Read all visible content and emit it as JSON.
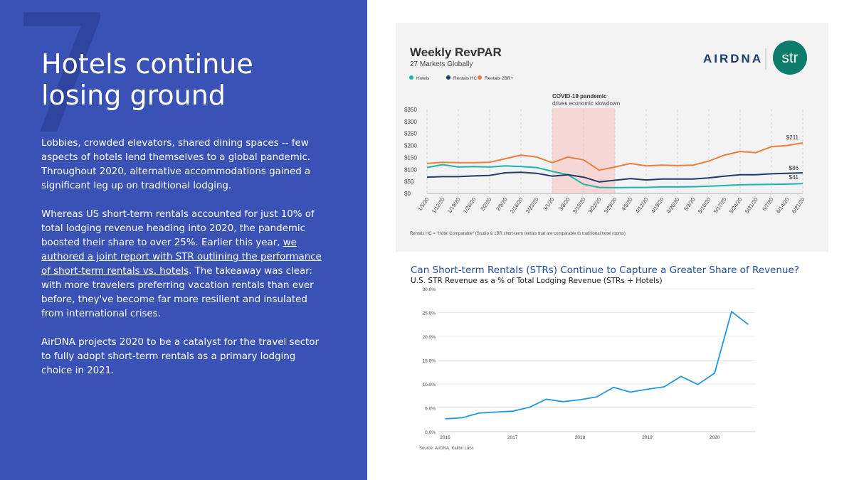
{
  "slide": {
    "number": "7",
    "title_line1": "Hotels continue",
    "title_line2": "losing ground",
    "p1": "Lobbies, crowded elevators, shared dining spaces -- few aspects of hotels lend themselves to a global pandemic. Throughout 2020, alternative accommodations gained a significant leg up on traditional lodging.",
    "p2_before": "Whereas US short-term rentals accounted for just 10% of total lodging revenue heading into 2020, the pandemic boosted their share to over 25%. Earlier this year, ",
    "p2_link": "we authored a joint report with STR outlining the performance of short-term rentals vs. hotels",
    "p2_after": ". The takeaway was clear: with more travelers preferring vacation rentals than ever before, they've become far more resilient and insulated from international crises.",
    "p3": "AirDNA projects 2020 to be a catalyst for the travel sector to fully adopt short-term rentals as a primary lodging choice in 2021.",
    "colors": {
      "left_bg": "#3a52b6",
      "hotels": "#1fb5a8",
      "rentals_hc": "#243a6b",
      "rentals_2br": "#ea7f3a",
      "line2": "#2196e8",
      "covid": "#f7d6d6"
    }
  },
  "logos": {
    "airdna": "AIRDNA",
    "str": "str"
  },
  "chart_data": [
    {
      "type": "line",
      "title": "Weekly RevPAR",
      "subtitle": "27 Markets Globally",
      "categories": [
        "1/5/20",
        "1/12/20",
        "1/19/20",
        "1/26/20",
        "2/2/20",
        "2/9/20",
        "2/16/20",
        "2/23/20",
        "3/1/20",
        "3/8/20",
        "3/15/20",
        "3/22/20",
        "3/29/20",
        "4/5/20",
        "4/12/20",
        "4/19/20",
        "4/26/20",
        "5/3/20",
        "5/10/20",
        "5/17/20",
        "5/24/20",
        "5/31/20",
        "6/7/20",
        "6/14/20",
        "6/21/20"
      ],
      "series": [
        {
          "name": "Hotels",
          "values": [
            108,
            120,
            110,
            112,
            110,
            115,
            112,
            108,
            92,
            78,
            38,
            25,
            24,
            25,
            25,
            27,
            27,
            28,
            30,
            33,
            36,
            37,
            38,
            39,
            41
          ]
        },
        {
          "name": "Rentals HC",
          "values": [
            68,
            70,
            70,
            73,
            75,
            86,
            88,
            84,
            72,
            78,
            68,
            48,
            55,
            62,
            56,
            60,
            60,
            60,
            65,
            72,
            78,
            78,
            82,
            84,
            86
          ]
        },
        {
          "name": "Rentals 2BR+",
          "values": [
            125,
            130,
            128,
            128,
            130,
            145,
            160,
            152,
            128,
            152,
            140,
            97,
            110,
            125,
            115,
            118,
            116,
            118,
            135,
            160,
            175,
            170,
            195,
            200,
            211
          ]
        }
      ],
      "end_labels": [
        "$211",
        "$86",
        "$41"
      ],
      "ytick_labels": [
        "$0",
        "$50",
        "$100",
        "$150",
        "$200",
        "$250",
        "$300",
        "$350"
      ],
      "ylim": [
        0,
        350
      ],
      "annotation_title": "COVID-19 pandemic",
      "annotation_sub": "drives economic slowdown",
      "footnote": "Rentals HC = \"Hotel Comparable\" (Studio & 1BR short-term rentals that are comparable to traditional hotel rooms)"
    },
    {
      "type": "line",
      "title": "Can Short-term Rentals (STRs) Continue to Capture a Greater Share of Revenue?",
      "subtitle": "U.S. STR Revenue as a % of Total Lodging Revenue (STRs + Hotels)",
      "x": [
        2016.0,
        2016.25,
        2016.5,
        2016.75,
        2017.0,
        2017.25,
        2017.5,
        2017.75,
        2018.0,
        2018.25,
        2018.5,
        2018.75,
        2019.0,
        2019.25,
        2019.5,
        2019.75,
        2020.0,
        2020.25,
        2020.5
      ],
      "values": [
        2.7,
        2.9,
        3.9,
        4.1,
        4.3,
        5.1,
        6.8,
        6.3,
        6.7,
        7.3,
        9.3,
        8.3,
        8.9,
        9.4,
        11.6,
        9.9,
        12.3,
        25.2,
        22.5
      ],
      "xtick_labels": [
        "2016",
        "2017",
        "2018",
        "2019",
        "2020"
      ],
      "ytick_labels": [
        "0.0%",
        "5.0%",
        "10.0%",
        "15.0%",
        "20.0%",
        "25.0%",
        "30.0%"
      ],
      "ylim": [
        0,
        30
      ],
      "source": "Source: AirDNA, Kalibri Labs"
    }
  ]
}
